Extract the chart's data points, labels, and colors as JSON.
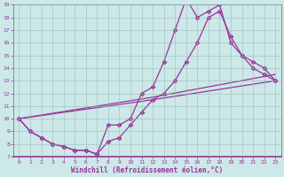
{
  "xlabel": "Windchill (Refroidissement éolien,°C)",
  "bg_color": "#cce8e8",
  "line_color": "#993399",
  "xlim": [
    -0.5,
    23.5
  ],
  "ylim": [
    7,
    19
  ],
  "xticks": [
    0,
    1,
    2,
    3,
    4,
    5,
    6,
    7,
    8,
    9,
    10,
    11,
    12,
    13,
    14,
    15,
    16,
    17,
    18,
    19,
    20,
    21,
    22,
    23
  ],
  "yticks": [
    7,
    8,
    9,
    10,
    11,
    12,
    13,
    14,
    15,
    16,
    17,
    18,
    19
  ],
  "line1_x": [
    0,
    1,
    2,
    3,
    4,
    5,
    6,
    7,
    8,
    9,
    10,
    11,
    12,
    13,
    14,
    15,
    16,
    17,
    18,
    19,
    20,
    21,
    22,
    23
  ],
  "line1_y": [
    10.0,
    9.0,
    8.5,
    8.0,
    7.8,
    7.5,
    7.5,
    7.2,
    9.5,
    9.5,
    10.0,
    12.0,
    12.5,
    14.5,
    17.0,
    19.5,
    18.0,
    18.5,
    19.0,
    16.0,
    15.0,
    14.5,
    14.0,
    13.0
  ],
  "line2_x": [
    0,
    1,
    2,
    3,
    4,
    5,
    6,
    7,
    8,
    9,
    10,
    11,
    12,
    13,
    14,
    15,
    16,
    17,
    18,
    19,
    20,
    21,
    22,
    23
  ],
  "line2_y": [
    10.0,
    9.0,
    8.5,
    8.0,
    7.8,
    7.5,
    7.5,
    7.2,
    8.2,
    8.5,
    9.5,
    10.5,
    11.5,
    12.0,
    13.0,
    14.5,
    16.0,
    18.0,
    18.5,
    16.5,
    15.0,
    14.0,
    13.5,
    13.0
  ],
  "line3_x": [
    0,
    12,
    23
  ],
  "line3_y": [
    10.0,
    11.5,
    13.0
  ],
  "line4_x": [
    0,
    12,
    23
  ],
  "line4_y": [
    10.0,
    11.7,
    13.5
  ],
  "grid_color": "#b0c8c8",
  "marker": "D",
  "markersize": 2.5
}
